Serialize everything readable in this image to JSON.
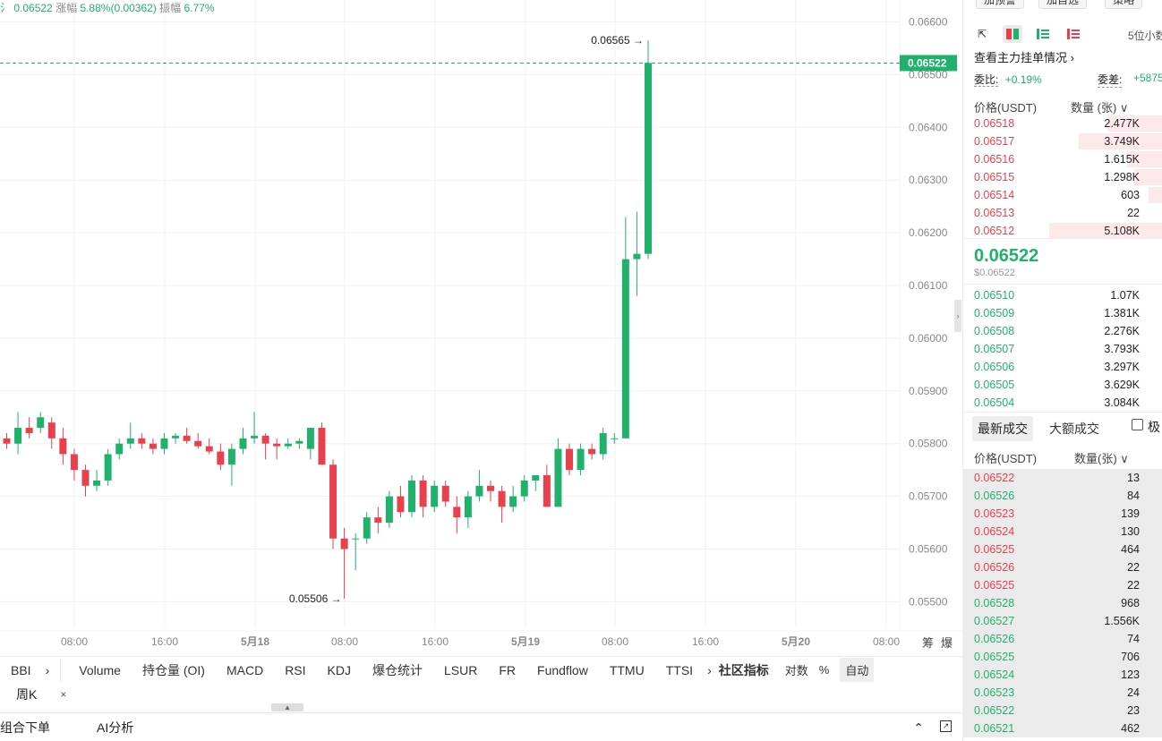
{
  "stats": {
    "price_prefix": "氵 0.06522",
    "change_label": "涨幅",
    "change_value": "5.88%(0.00362)",
    "amp_label": "振幅",
    "amp_value": "6.77%"
  },
  "chart_data": {
    "type": "candlestick",
    "y_ticks": [
      "0.06600",
      "0.06500",
      "0.06400",
      "0.06300",
      "0.06200",
      "0.06100",
      "0.06000",
      "0.05900",
      "0.05800",
      "0.05700",
      "0.05600",
      "0.05500"
    ],
    "x_ticks": [
      "08:00",
      "16:00",
      "5月18",
      "08:00",
      "16:00",
      "5月19",
      "08:00",
      "16:00",
      "5月20",
      "08:00"
    ],
    "ylim": [
      0.05455,
      0.0664
    ],
    "last_price_label": "0.06522",
    "high_label": "0.06565",
    "low_label": "0.05506",
    "candles": [
      [
        0.0581,
        0.0582,
        0.0579,
        0.058
      ],
      [
        0.058,
        0.0586,
        0.0578,
        0.0583
      ],
      [
        0.0583,
        0.0585,
        0.0581,
        0.0582
      ],
      [
        0.0583,
        0.0586,
        0.0582,
        0.0585
      ],
      [
        0.0584,
        0.0585,
        0.0579,
        0.0581
      ],
      [
        0.0581,
        0.0583,
        0.0576,
        0.0578
      ],
      [
        0.0578,
        0.0579,
        0.0573,
        0.0575
      ],
      [
        0.0575,
        0.0576,
        0.057,
        0.0572
      ],
      [
        0.0572,
        0.0575,
        0.0571,
        0.0573
      ],
      [
        0.0573,
        0.0579,
        0.0572,
        0.0578
      ],
      [
        0.0578,
        0.0581,
        0.0577,
        0.058
      ],
      [
        0.058,
        0.0584,
        0.0579,
        0.0581
      ],
      [
        0.0581,
        0.0582,
        0.0579,
        0.058
      ],
      [
        0.058,
        0.0581,
        0.0578,
        0.0579
      ],
      [
        0.0579,
        0.0582,
        0.0578,
        0.0581
      ],
      [
        0.0581,
        0.0582,
        0.058,
        0.05815
      ],
      [
        0.05815,
        0.0583,
        0.058,
        0.05805
      ],
      [
        0.05805,
        0.0582,
        0.0579,
        0.05795
      ],
      [
        0.05795,
        0.0581,
        0.0578,
        0.05785
      ],
      [
        0.05785,
        0.058,
        0.0575,
        0.0576
      ],
      [
        0.0576,
        0.058,
        0.0572,
        0.0579
      ],
      [
        0.0579,
        0.0583,
        0.0578,
        0.0581
      ],
      [
        0.0581,
        0.0586,
        0.058,
        0.05815
      ],
      [
        0.05815,
        0.0582,
        0.0577,
        0.058
      ],
      [
        0.058,
        0.0581,
        0.0577,
        0.05795
      ],
      [
        0.05795,
        0.0581,
        0.0579,
        0.058
      ],
      [
        0.058,
        0.0581,
        0.0579,
        0.05805
      ],
      [
        0.0579,
        0.0583,
        0.0577,
        0.0583
      ],
      [
        0.0583,
        0.0584,
        0.0576,
        0.0576
      ],
      [
        0.0576,
        0.0577,
        0.056,
        0.0562
      ],
      [
        0.0562,
        0.0564,
        0.05506,
        0.056
      ],
      [
        0.0562,
        0.0563,
        0.0556,
        0.0562
      ],
      [
        0.0562,
        0.0567,
        0.0561,
        0.0566
      ],
      [
        0.0566,
        0.0568,
        0.0563,
        0.0565
      ],
      [
        0.0565,
        0.0571,
        0.0564,
        0.057
      ],
      [
        0.057,
        0.0572,
        0.0566,
        0.0567
      ],
      [
        0.0567,
        0.0574,
        0.0566,
        0.0573
      ],
      [
        0.0573,
        0.0574,
        0.0566,
        0.0568
      ],
      [
        0.0568,
        0.0573,
        0.0567,
        0.0572
      ],
      [
        0.0572,
        0.0573,
        0.0568,
        0.0569
      ],
      [
        0.0568,
        0.057,
        0.0563,
        0.0566
      ],
      [
        0.0566,
        0.0571,
        0.0564,
        0.057
      ],
      [
        0.057,
        0.0575,
        0.0569,
        0.0572
      ],
      [
        0.0572,
        0.0573,
        0.0569,
        0.0571
      ],
      [
        0.0571,
        0.0572,
        0.0565,
        0.0568
      ],
      [
        0.0568,
        0.0572,
        0.0567,
        0.057
      ],
      [
        0.057,
        0.0574,
        0.0569,
        0.0573
      ],
      [
        0.0573,
        0.0574,
        0.0571,
        0.0574
      ],
      [
        0.0574,
        0.0576,
        0.0568,
        0.0568
      ],
      [
        0.0568,
        0.0581,
        0.0568,
        0.0579
      ],
      [
        0.0579,
        0.058,
        0.0574,
        0.0575
      ],
      [
        0.0575,
        0.058,
        0.0574,
        0.0579
      ],
      [
        0.0579,
        0.058,
        0.0577,
        0.0578
      ],
      [
        0.0578,
        0.0583,
        0.0577,
        0.0582
      ],
      [
        0.0581,
        0.0582,
        0.058,
        0.0581
      ],
      [
        0.0581,
        0.0623,
        0.0581,
        0.0615
      ],
      [
        0.0615,
        0.0624,
        0.0608,
        0.0616
      ],
      [
        0.0616,
        0.06565,
        0.0615,
        0.06522
      ]
    ]
  },
  "indicator_bar": {
    "items": [
      "BBI",
      "›",
      "Volume",
      "持仓量 (OI)",
      "MACD",
      "RSI",
      "KDJ",
      "爆仓统计",
      "LSUR",
      "FR",
      "Fundflow",
      "TTMU",
      "TTSI",
      "›",
      "社区指标",
      "对数",
      "%",
      "自动"
    ],
    "corner": [
      "筹",
      "爆"
    ]
  },
  "period_tab": {
    "label": "周K",
    "close": "×"
  },
  "bottom_bar": {
    "tab1": "组合下单",
    "tab2": "AI分析"
  },
  "panel": {
    "buttons": [
      "加预警",
      "加自选",
      "策略"
    ],
    "decimals": "5位小数",
    "main_link": "查看主力挂单情况 ›",
    "ratio_label": "委比:",
    "ratio_value": "+0.19%",
    "diff_label": "委差:",
    "diff_value": "+5875",
    "ob_header_price": "价格(USDT)",
    "ob_header_qty": "数量 (张) ∨",
    "asks": [
      {
        "p": "0.06518",
        "q": "2.477K",
        "d": 0.48
      },
      {
        "p": "0.06517",
        "q": "3.749K",
        "d": 0.72
      },
      {
        "p": "0.06516",
        "q": "1.615K",
        "d": 0.31
      },
      {
        "p": "0.06515",
        "q": "1.298K",
        "d": 0.25
      },
      {
        "p": "0.06514",
        "q": "603",
        "d": 0.12
      },
      {
        "p": "0.06513",
        "q": "22",
        "d": 0.01
      },
      {
        "p": "0.06512",
        "q": "5.108K",
        "d": 0.98
      }
    ],
    "last_price": "0.06522",
    "last_usd": "$0.06522",
    "bids": [
      {
        "p": "0.06510",
        "q": "1.07K",
        "d": 0.21
      },
      {
        "p": "0.06509",
        "q": "1.381K",
        "d": 0.27
      },
      {
        "p": "0.06508",
        "q": "2.276K",
        "d": 0.44
      },
      {
        "p": "0.06507",
        "q": "3.793K",
        "d": 0.73
      },
      {
        "p": "0.06506",
        "q": "3.297K",
        "d": 0.64
      },
      {
        "p": "0.06505",
        "q": "3.629K",
        "d": 0.7
      },
      {
        "p": "0.06504",
        "q": "3.084K",
        "d": 0.6
      }
    ],
    "tab_latest": "最新成交",
    "tab_large": "大额成交",
    "tab_extreme": "极",
    "trades_header_price": "价格(USDT)",
    "trades_header_qty": "数量(张) ∨",
    "trades": [
      {
        "p": "0.06522",
        "q": "13",
        "s": "sell"
      },
      {
        "p": "0.06526",
        "q": "84",
        "s": "buy"
      },
      {
        "p": "0.06523",
        "q": "139",
        "s": "sell"
      },
      {
        "p": "0.06524",
        "q": "130",
        "s": "sell"
      },
      {
        "p": "0.06525",
        "q": "464",
        "s": "sell"
      },
      {
        "p": "0.06526",
        "q": "22",
        "s": "sell"
      },
      {
        "p": "0.06525",
        "q": "22",
        "s": "sell"
      },
      {
        "p": "0.06528",
        "q": "968",
        "s": "buy"
      },
      {
        "p": "0.06527",
        "q": "1.556K",
        "s": "buy"
      },
      {
        "p": "0.06526",
        "q": "74",
        "s": "buy"
      },
      {
        "p": "0.06525",
        "q": "706",
        "s": "buy"
      },
      {
        "p": "0.06524",
        "q": "123",
        "s": "buy"
      },
      {
        "p": "0.06523",
        "q": "24",
        "s": "buy"
      },
      {
        "p": "0.06522",
        "q": "23",
        "s": "buy"
      },
      {
        "p": "0.06521",
        "q": "462",
        "s": "buy"
      }
    ]
  },
  "colors": {
    "up": "#20b26c",
    "down": "#e8414d",
    "grid": "#f0f0f0"
  }
}
